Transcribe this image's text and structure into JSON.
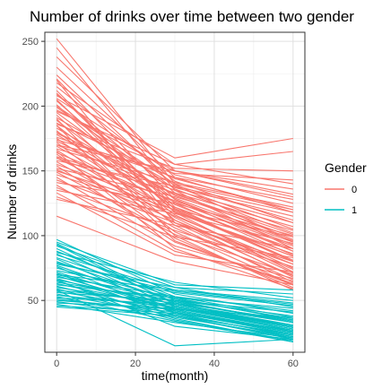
{
  "chart_data": {
    "type": "line",
    "title": "Number of drinks over time between two gender",
    "xlabel": "time(month)",
    "ylabel": "Number of drinks",
    "x": [
      0,
      30,
      60
    ],
    "xlim": [
      -3,
      63
    ],
    "ylim": [
      10,
      257
    ],
    "xticks": [
      0,
      20,
      40,
      60
    ],
    "yticks": [
      50,
      100,
      150,
      200,
      250
    ],
    "grid": true,
    "legend": {
      "title": "Gender",
      "placement": "right",
      "entries": [
        {
          "label": "0",
          "color": "#F8766D"
        },
        {
          "label": "1",
          "color": "#00BFC4"
        }
      ]
    },
    "series": [
      {
        "group": "0",
        "color": "#F8766D",
        "lines": [
          [
            252,
            140,
            95
          ],
          [
            245,
            135,
            90
          ],
          [
            238,
            150,
            130
          ],
          [
            230,
            145,
            118
          ],
          [
            224,
            138,
            105
          ],
          [
            221,
            128,
            88
          ],
          [
            218,
            155,
            140
          ],
          [
            215,
            142,
            110
          ],
          [
            212,
            120,
            80
          ],
          [
            209,
            133,
            97
          ],
          [
            206,
            147,
            125
          ],
          [
            204,
            125,
            85
          ],
          [
            201,
            118,
            72
          ],
          [
            199,
            136,
            102
          ],
          [
            197,
            150,
            136
          ],
          [
            195,
            128,
            93
          ],
          [
            193,
            112,
            68
          ],
          [
            191,
            139,
            112
          ],
          [
            189,
            121,
            81
          ],
          [
            187,
            144,
            120
          ],
          [
            185,
            116,
            75
          ],
          [
            183,
            131,
            99
          ],
          [
            181,
            108,
            64
          ],
          [
            179,
            137,
            115
          ],
          [
            178,
            124,
            88
          ],
          [
            176,
            145,
            128
          ],
          [
            175,
            114,
            71
          ],
          [
            173,
            129,
            96
          ],
          [
            172,
            103,
            62
          ],
          [
            170,
            135,
            110
          ],
          [
            169,
            119,
            84
          ],
          [
            167,
            141,
            122
          ],
          [
            166,
            110,
            69
          ],
          [
            164,
            126,
            92
          ],
          [
            163,
            98,
            60
          ],
          [
            161,
            133,
            107
          ],
          [
            160,
            115,
            78
          ],
          [
            158,
            138,
            118
          ],
          [
            157,
            106,
            66
          ],
          [
            155,
            122,
            90
          ],
          [
            154,
            95,
            63
          ],
          [
            152,
            130,
            104
          ],
          [
            151,
            112,
            74
          ],
          [
            149,
            101,
            70
          ],
          [
            147,
            118,
            86
          ],
          [
            145,
            92,
            67
          ],
          [
            143,
            110,
            80
          ],
          [
            141,
            125,
            100
          ],
          [
            139,
            88,
            65
          ],
          [
            137,
            104,
            76
          ],
          [
            135,
            117,
            94
          ],
          [
            133,
            85,
            72
          ],
          [
            130,
            99,
            83
          ],
          [
            128,
            108,
            90
          ],
          [
            115,
            80,
            62
          ],
          [
            208,
            160,
            175
          ],
          [
            196,
            155,
            165
          ],
          [
            186,
            152,
            150
          ],
          [
            174,
            148,
            143
          ],
          [
            210,
            122,
            80
          ],
          [
            200,
            140,
            120
          ],
          [
            190,
            100,
            58
          ],
          [
            180,
            132,
            101
          ],
          [
            170,
            150,
            132
          ],
          [
            160,
            127,
            95
          ],
          [
            150,
            120,
            99
          ],
          [
            220,
            110,
            78
          ],
          [
            205,
            118,
            84
          ],
          [
            185,
            96,
            62
          ],
          [
            165,
            90,
            59
          ]
        ]
      },
      {
        "group": "1",
        "color": "#00BFC4",
        "lines": [
          [
            97,
            55,
            40
          ],
          [
            94,
            50,
            33
          ],
          [
            92,
            60,
            45
          ],
          [
            90,
            48,
            30
          ],
          [
            88,
            53,
            37
          ],
          [
            86,
            45,
            28
          ],
          [
            85,
            58,
            50
          ],
          [
            83,
            52,
            35
          ],
          [
            82,
            42,
            25
          ],
          [
            80,
            49,
            34
          ],
          [
            79,
            57,
            47
          ],
          [
            77,
            46,
            29
          ],
          [
            76,
            40,
            22
          ],
          [
            75,
            51,
            36
          ],
          [
            73,
            56,
            46
          ],
          [
            72,
            44,
            27
          ],
          [
            71,
            38,
            20
          ],
          [
            70,
            49,
            33
          ],
          [
            69,
            43,
            26
          ],
          [
            68,
            53,
            42
          ],
          [
            67,
            41,
            24
          ],
          [
            66,
            47,
            31
          ],
          [
            65,
            36,
            18
          ],
          [
            64,
            50,
            38
          ],
          [
            63,
            44,
            28
          ],
          [
            62,
            52,
            44
          ],
          [
            61,
            39,
            23
          ],
          [
            60,
            46,
            30
          ],
          [
            59,
            35,
            19
          ],
          [
            58,
            48,
            35
          ],
          [
            57,
            42,
            26
          ],
          [
            56,
            50,
            41
          ],
          [
            55,
            38,
            21
          ],
          [
            54,
            45,
            29
          ],
          [
            53,
            34,
            18
          ],
          [
            52,
            47,
            33
          ],
          [
            51,
            41,
            25
          ],
          [
            50,
            43,
            37
          ],
          [
            49,
            37,
            22
          ],
          [
            48,
            44,
            30
          ],
          [
            47,
            33,
            21
          ],
          [
            46,
            40,
            27
          ],
          [
            45,
            38,
            24
          ],
          [
            95,
            62,
            58
          ],
          [
            87,
            64,
            52
          ],
          [
            78,
            60,
            55
          ],
          [
            70,
            58,
            48
          ],
          [
            93,
            47,
            30
          ],
          [
            66,
            30,
            20
          ],
          [
            58,
            15,
            20
          ]
        ]
      }
    ]
  }
}
